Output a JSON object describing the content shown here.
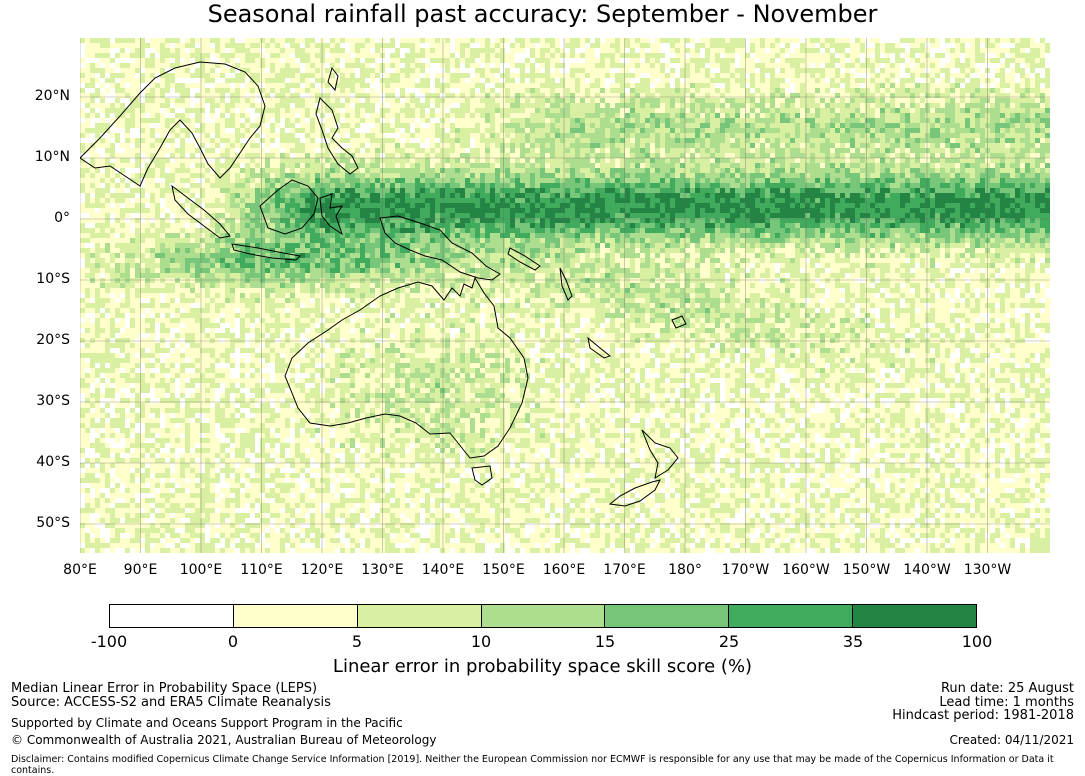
{
  "title": "Seasonal rainfall past accuracy: September - November",
  "map": {
    "lat_ticks": [
      "20°N",
      "10°N",
      "0°",
      "10°S",
      "20°S",
      "30°S",
      "40°S",
      "50°S"
    ],
    "lon_ticks": [
      "80°E",
      "90°E",
      "100°E",
      "110°E",
      "120°E",
      "130°E",
      "140°E",
      "150°E",
      "160°E",
      "170°E",
      "180°",
      "170°W",
      "160°W",
      "150°W",
      "140°W",
      "130°W"
    ]
  },
  "legend": {
    "title": "Linear error in probability space skill score (%)",
    "labels": [
      "-100",
      "0",
      "5",
      "10",
      "15",
      "25",
      "35",
      "100"
    ],
    "colors": [
      "#ffffff",
      "#ffffcc",
      "#d9f0a3",
      "#addd8e",
      "#78c679",
      "#41ab5d",
      "#238443"
    ]
  },
  "footer": {
    "line1": "Median Linear Error in Probability Space (LEPS)",
    "line2": "Source: ACCESS-S2 and ERA5 Climate Reanalysis",
    "line3": "Supported by Climate and Oceans Support Program in the Pacific",
    "line4": "© Commonwealth of Australia 2021, Australian Bureau of Meteorology",
    "run_date": "Run date: 25 August",
    "lead_time": "Lead time: 1 months",
    "hindcast": "Hindcast period: 1981-2018",
    "created": "Created: 04/11/2021",
    "disclaimer": "Disclaimer: Contains modified Copernicus Climate Change Service Information [2019]. Neither the European Commission nor ECMWF is responsible for any use that may be made of the Copernicus Information or Data it contains."
  }
}
